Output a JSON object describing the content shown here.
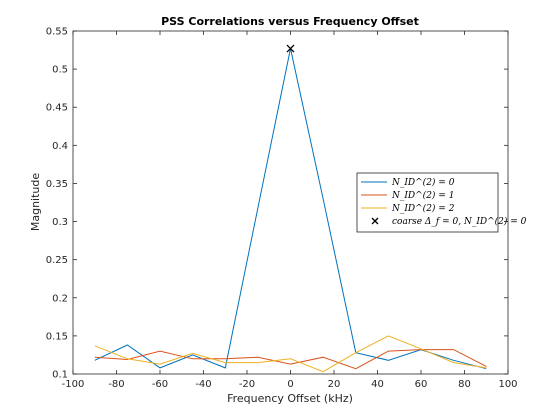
{
  "chart_data": {
    "type": "line",
    "title": "PSS Correlations versus Frequency Offset",
    "xlabel": "Frequency Offset (kHz)",
    "ylabel": "Magnitude",
    "xlim": [
      -100,
      100
    ],
    "ylim": [
      0.1,
      0.55
    ],
    "x_ticks": [
      -100,
      -80,
      -60,
      -40,
      -20,
      0,
      20,
      40,
      60,
      80,
      100
    ],
    "y_ticks": [
      0.1,
      0.15,
      0.2,
      0.25,
      0.3,
      0.35,
      0.4,
      0.45,
      0.5,
      0.55
    ],
    "grid": false,
    "legend_position": "right",
    "x": [
      -90,
      -75,
      -60,
      -45,
      -30,
      -15,
      0,
      15,
      30,
      45,
      60,
      75,
      90
    ],
    "series": [
      {
        "name": "N_ID^(2) = 0",
        "legend": "N_ID^(2) = 0",
        "color": "#0072BD",
        "values": [
          0.118,
          0.138,
          0.108,
          0.125,
          0.108,
          0.318,
          0.527,
          0.33,
          0.128,
          0.118,
          0.132,
          0.118,
          0.107
        ]
      },
      {
        "name": "N_ID^(2) = 1",
        "legend": "N_ID^(2) = 1",
        "color": "#D95319",
        "values": [
          0.122,
          0.119,
          0.13,
          0.12,
          0.12,
          0.122,
          0.113,
          0.122,
          0.107,
          0.13,
          0.132,
          0.132,
          0.11
        ]
      },
      {
        "name": "N_ID^(2) = 2",
        "legend": "N_ID^(2) = 2",
        "color": "#EDB120",
        "values": [
          0.137,
          0.12,
          0.113,
          0.127,
          0.115,
          0.115,
          0.12,
          0.103,
          0.128,
          0.15,
          0.133,
          0.115,
          0.108
        ]
      }
    ],
    "marker": {
      "label": "coarse Δ_f = 0, N_ID^(2) = 0",
      "legend": "coarse Δ_f = 0, N_ID^(2) = 0",
      "x": 0,
      "y": 0.527,
      "symbol": "x",
      "color": "#000000"
    }
  }
}
